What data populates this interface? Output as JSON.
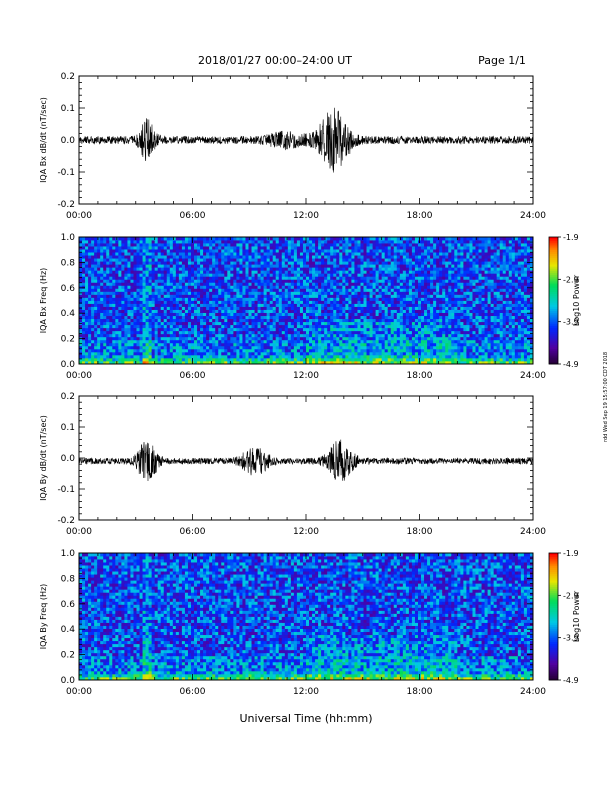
{
  "header": {
    "title": "2018/01/27  00:00–24:00 UT",
    "page": "Page 1/1"
  },
  "side_stamp": "rdd Wed Sep 19 15:57:00 CDT 2018",
  "chart_data": [
    {
      "type": "line",
      "ylabel": "IQA Bx dB/dt (nT/sec)",
      "xlabel": "",
      "x_ticks": [
        "00:00",
        "06:00",
        "12:00",
        "18:00",
        "24:00"
      ],
      "xlim": [
        0,
        24
      ],
      "ylim": [
        -0.2,
        0.2
      ],
      "y_ticks": [
        "-0.2",
        "-0.1",
        "0.0",
        "0.1",
        "0.2"
      ],
      "baseline": 0.0,
      "noise_amplitude": 0.012,
      "bursts": [
        {
          "t": 3.6,
          "amp": 0.06,
          "width": 0.6
        },
        {
          "t": 13.5,
          "amp": 0.09,
          "width": 1.2
        },
        {
          "t": 11.0,
          "amp": 0.02,
          "width": 1.5
        }
      ]
    },
    {
      "type": "heatmap",
      "ylabel": "IQA Bx Freq (Hz)",
      "xlabel": "",
      "x_ticks": [
        "00:00",
        "06:00",
        "12:00",
        "18:00",
        "24:00"
      ],
      "xlim": [
        0,
        24
      ],
      "ylim": [
        0.0,
        1.0
      ],
      "y_ticks": [
        "0.0",
        "0.2",
        "0.4",
        "0.6",
        "0.8",
        "1.0"
      ],
      "colorbar": {
        "label": "Log10 Power",
        "ticks": [
          "-1.9",
          "-2.9",
          "-3.9",
          "-4.9"
        ],
        "range": [
          -4.9,
          -1.9
        ]
      },
      "features": {
        "vertical_line_t": 3.6,
        "low_freq_enhanced": true,
        "wave_region_t": [
          12.0,
          20.0
        ]
      }
    },
    {
      "type": "line",
      "ylabel": "IQA By dB/dt (nT/sec)",
      "xlabel": "",
      "x_ticks": [
        "00:00",
        "06:00",
        "12:00",
        "18:00",
        "24:00"
      ],
      "xlim": [
        0,
        24
      ],
      "ylim": [
        -0.2,
        0.2
      ],
      "y_ticks": [
        "-0.2",
        "-0.1",
        "0.0",
        "0.1",
        "0.2"
      ],
      "baseline": -0.01,
      "noise_amplitude": 0.01,
      "bursts": [
        {
          "t": 3.6,
          "amp": 0.06,
          "width": 0.8
        },
        {
          "t": 9.3,
          "amp": 0.045,
          "width": 1.0
        },
        {
          "t": 13.8,
          "amp": 0.06,
          "width": 1.0
        }
      ]
    },
    {
      "type": "heatmap",
      "ylabel": "IQA By Freq (Hz)",
      "xlabel": "Universal Time (hh:mm)",
      "x_ticks": [
        "00:00",
        "06:00",
        "12:00",
        "18:00",
        "24:00"
      ],
      "xlim": [
        0,
        24
      ],
      "ylim": [
        0.0,
        1.0
      ],
      "y_ticks": [
        "0.0",
        "0.2",
        "0.4",
        "0.6",
        "0.8",
        "1.0"
      ],
      "colorbar": {
        "label": "Log10 Power",
        "ticks": [
          "-1.9",
          "-2.9",
          "-3.9",
          "-4.9"
        ],
        "range": [
          -4.9,
          -1.9
        ]
      },
      "features": {
        "vertical_line_t": 3.6,
        "low_freq_enhanced": true,
        "wave_region_t": [
          12.0,
          20.0
        ]
      }
    }
  ]
}
